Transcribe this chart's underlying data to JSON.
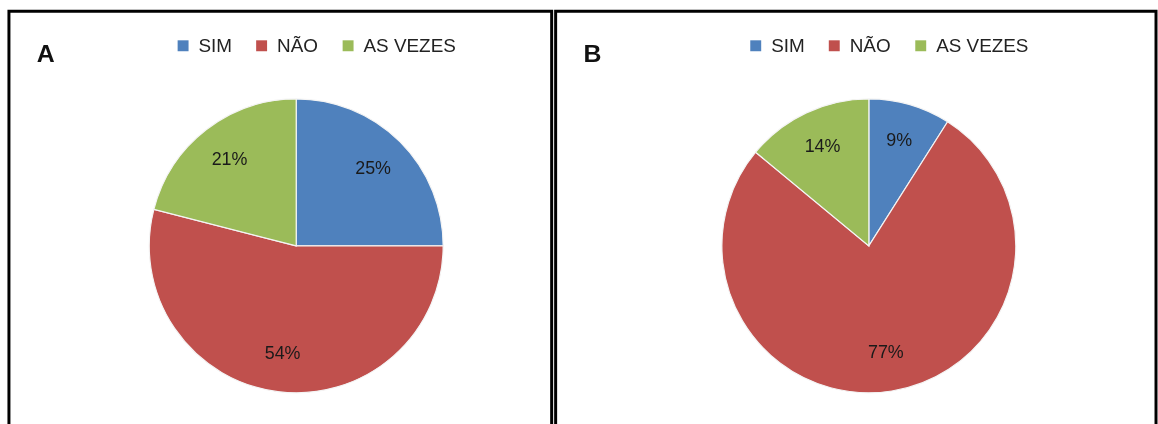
{
  "chart_data": [
    {
      "type": "pie",
      "title": "A",
      "categories": [
        "SIM",
        "NÃO",
        "AS VEZES"
      ],
      "values": [
        25,
        54,
        21
      ],
      "colors": [
        "#4f81bd",
        "#c0504d",
        "#9bbb59"
      ],
      "value_labels": [
        "25%",
        "54%",
        "21%"
      ],
      "legend": "top"
    },
    {
      "type": "pie",
      "title": "B",
      "categories": [
        "SIM",
        "NÃO",
        "AS VEZES"
      ],
      "values": [
        9,
        77,
        14
      ],
      "colors": [
        "#4f81bd",
        "#c0504d",
        "#9bbb59"
      ],
      "value_labels": [
        "9%",
        "77%",
        "14%"
      ],
      "legend": "top"
    }
  ]
}
